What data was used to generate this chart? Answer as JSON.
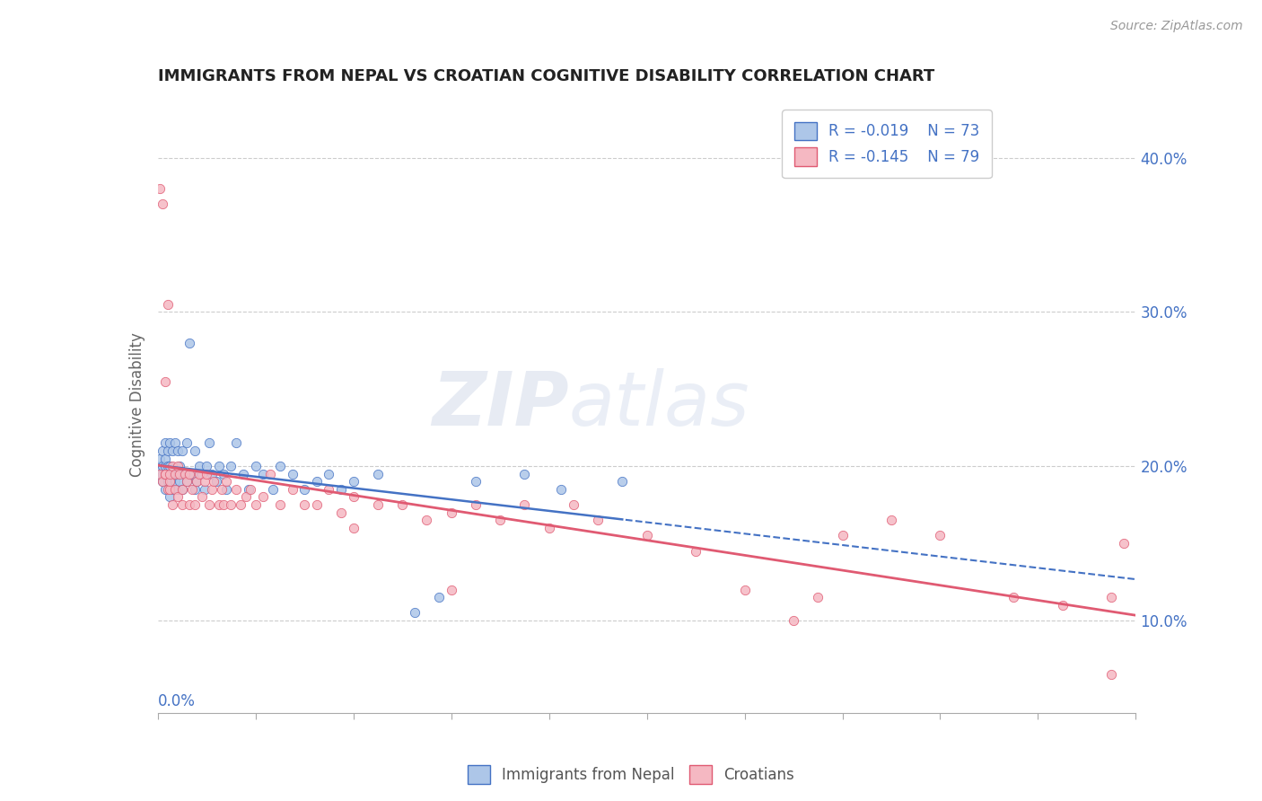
{
  "title": "IMMIGRANTS FROM NEPAL VS CROATIAN COGNITIVE DISABILITY CORRELATION CHART",
  "source": "Source: ZipAtlas.com",
  "ylabel": "Cognitive Disability",
  "right_yticks": [
    "10.0%",
    "20.0%",
    "30.0%",
    "40.0%"
  ],
  "right_ytick_vals": [
    0.1,
    0.2,
    0.3,
    0.4
  ],
  "xmin": 0.0,
  "xmax": 0.4,
  "ymin": 0.04,
  "ymax": 0.44,
  "legend_r1": "R = -0.019",
  "legend_n1": "N = 73",
  "legend_r2": "R = -0.145",
  "legend_n2": "N = 79",
  "color_blue": "#adc6e8",
  "color_pink": "#f5b8c2",
  "line_blue": "#4472c4",
  "line_pink": "#e05a72",
  "text_blue": "#4472c4",
  "text_dark": "#333333",
  "watermark": "ZIPatlas",
  "nepal_x": [
    0.001,
    0.001,
    0.001,
    0.002,
    0.002,
    0.002,
    0.002,
    0.003,
    0.003,
    0.003,
    0.003,
    0.003,
    0.004,
    0.004,
    0.004,
    0.004,
    0.005,
    0.005,
    0.005,
    0.005,
    0.005,
    0.006,
    0.006,
    0.006,
    0.007,
    0.007,
    0.007,
    0.008,
    0.008,
    0.008,
    0.009,
    0.009,
    0.01,
    0.01,
    0.011,
    0.012,
    0.012,
    0.013,
    0.014,
    0.015,
    0.015,
    0.016,
    0.017,
    0.018,
    0.019,
    0.02,
    0.021,
    0.022,
    0.024,
    0.025,
    0.027,
    0.028,
    0.03,
    0.032,
    0.035,
    0.037,
    0.04,
    0.043,
    0.047,
    0.05,
    0.055,
    0.06,
    0.065,
    0.07,
    0.075,
    0.08,
    0.09,
    0.105,
    0.115,
    0.13,
    0.15,
    0.165,
    0.19
  ],
  "nepal_y": [
    0.195,
    0.2,
    0.205,
    0.19,
    0.195,
    0.2,
    0.21,
    0.185,
    0.195,
    0.2,
    0.205,
    0.215,
    0.19,
    0.195,
    0.2,
    0.21,
    0.18,
    0.19,
    0.195,
    0.2,
    0.215,
    0.185,
    0.195,
    0.21,
    0.19,
    0.195,
    0.215,
    0.185,
    0.195,
    0.21,
    0.19,
    0.2,
    0.185,
    0.21,
    0.195,
    0.19,
    0.215,
    0.28,
    0.195,
    0.185,
    0.21,
    0.19,
    0.2,
    0.195,
    0.185,
    0.2,
    0.215,
    0.195,
    0.19,
    0.2,
    0.195,
    0.185,
    0.2,
    0.215,
    0.195,
    0.185,
    0.2,
    0.195,
    0.185,
    0.2,
    0.195,
    0.185,
    0.19,
    0.195,
    0.185,
    0.19,
    0.195,
    0.105,
    0.115,
    0.19,
    0.195,
    0.185,
    0.19
  ],
  "croatian_x": [
    0.001,
    0.001,
    0.002,
    0.002,
    0.003,
    0.003,
    0.003,
    0.004,
    0.004,
    0.005,
    0.005,
    0.005,
    0.006,
    0.006,
    0.007,
    0.007,
    0.008,
    0.008,
    0.009,
    0.01,
    0.01,
    0.011,
    0.012,
    0.013,
    0.013,
    0.014,
    0.015,
    0.016,
    0.017,
    0.018,
    0.019,
    0.02,
    0.021,
    0.022,
    0.023,
    0.025,
    0.026,
    0.027,
    0.028,
    0.03,
    0.032,
    0.034,
    0.036,
    0.038,
    0.04,
    0.043,
    0.046,
    0.05,
    0.055,
    0.06,
    0.065,
    0.07,
    0.075,
    0.08,
    0.09,
    0.1,
    0.11,
    0.12,
    0.13,
    0.14,
    0.15,
    0.16,
    0.17,
    0.18,
    0.2,
    0.22,
    0.24,
    0.26,
    0.28,
    0.3,
    0.32,
    0.35,
    0.37,
    0.39,
    0.395,
    0.27,
    0.12,
    0.08,
    0.39
  ],
  "croatian_y": [
    0.195,
    0.38,
    0.37,
    0.19,
    0.195,
    0.195,
    0.255,
    0.185,
    0.305,
    0.185,
    0.19,
    0.195,
    0.175,
    0.2,
    0.185,
    0.195,
    0.18,
    0.2,
    0.195,
    0.175,
    0.185,
    0.195,
    0.19,
    0.175,
    0.195,
    0.185,
    0.175,
    0.19,
    0.195,
    0.18,
    0.19,
    0.195,
    0.175,
    0.185,
    0.19,
    0.175,
    0.185,
    0.175,
    0.19,
    0.175,
    0.185,
    0.175,
    0.18,
    0.185,
    0.175,
    0.18,
    0.195,
    0.175,
    0.185,
    0.175,
    0.175,
    0.185,
    0.17,
    0.18,
    0.175,
    0.175,
    0.165,
    0.17,
    0.175,
    0.165,
    0.175,
    0.16,
    0.175,
    0.165,
    0.155,
    0.145,
    0.12,
    0.1,
    0.155,
    0.165,
    0.155,
    0.115,
    0.11,
    0.065,
    0.15,
    0.115,
    0.12,
    0.16,
    0.115
  ]
}
